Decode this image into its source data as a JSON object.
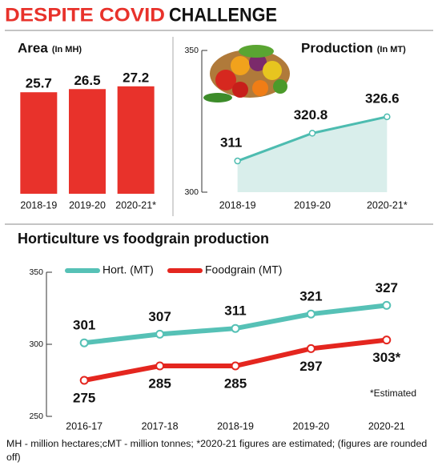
{
  "header": {
    "title_red": "DESPITE COVID",
    "title_black": "CHALLENGE"
  },
  "chart_data": [
    {
      "type": "bar",
      "title": "Area",
      "unit": "(In MH)",
      "categories": [
        "2018-19",
        "2019-20",
        "2020-21*"
      ],
      "values": [
        25.7,
        26.5,
        27.2
      ],
      "color": "#e8322b",
      "ylim": [
        0,
        30
      ]
    },
    {
      "type": "area",
      "title": "Production",
      "unit": "(In MT)",
      "categories": [
        "2018-19",
        "2019-20",
        "2020-21*"
      ],
      "values": [
        311,
        320.8,
        326.6
      ],
      "color": "#4dbcb0",
      "fill": "#d9eeeb",
      "ylim": [
        300,
        350
      ],
      "yticks": [
        300,
        350
      ]
    },
    {
      "type": "line",
      "title": "Horticulture vs foodgrain production",
      "categories": [
        "2016-17",
        "2017-18",
        "2018-19",
        "2019-20",
        "2020-21"
      ],
      "series": [
        {
          "name": "Hort. (MT)",
          "color": "#56c1b6",
          "values": [
            301,
            307,
            311,
            321,
            327
          ]
        },
        {
          "name": "Foodgrain (MT)",
          "color": "#e4261f",
          "values": [
            275,
            285,
            285,
            297,
            303
          ],
          "value_labels": [
            "275",
            "285",
            "285",
            "297",
            "303*"
          ]
        }
      ],
      "ylim": [
        250,
        350
      ],
      "yticks": [
        250,
        300,
        350
      ],
      "legend": "top",
      "annotation": "*Estimated"
    }
  ],
  "footnote": "MH - million hectares;cMT - million tonnes; *2020-21 figures are estimated; (figures are rounded off)"
}
